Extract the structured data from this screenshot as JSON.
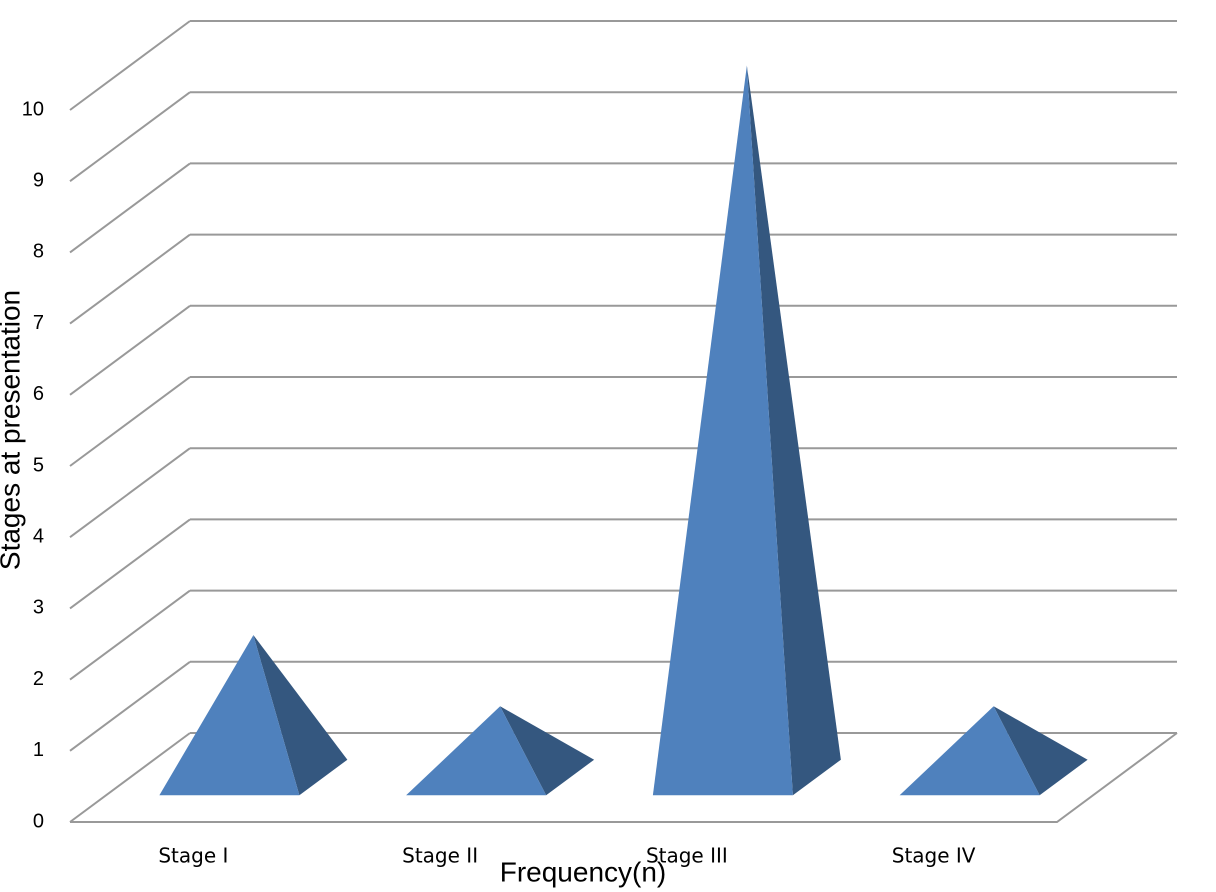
{
  "chart_data": {
    "type": "pyramid3d",
    "categories": [
      "Stage I",
      "Stage II",
      "Stage III",
      "Stage IV"
    ],
    "values": [
      2,
      1,
      10,
      1
    ],
    "color": "#4f81bd",
    "ylim": [
      0,
      10
    ],
    "yticks": [
      0,
      1,
      2,
      3,
      4,
      5,
      6,
      7,
      8,
      9,
      10
    ],
    "y_label": "Stages at presentation",
    "x_label": "Frequency(n)",
    "grid": true
  }
}
